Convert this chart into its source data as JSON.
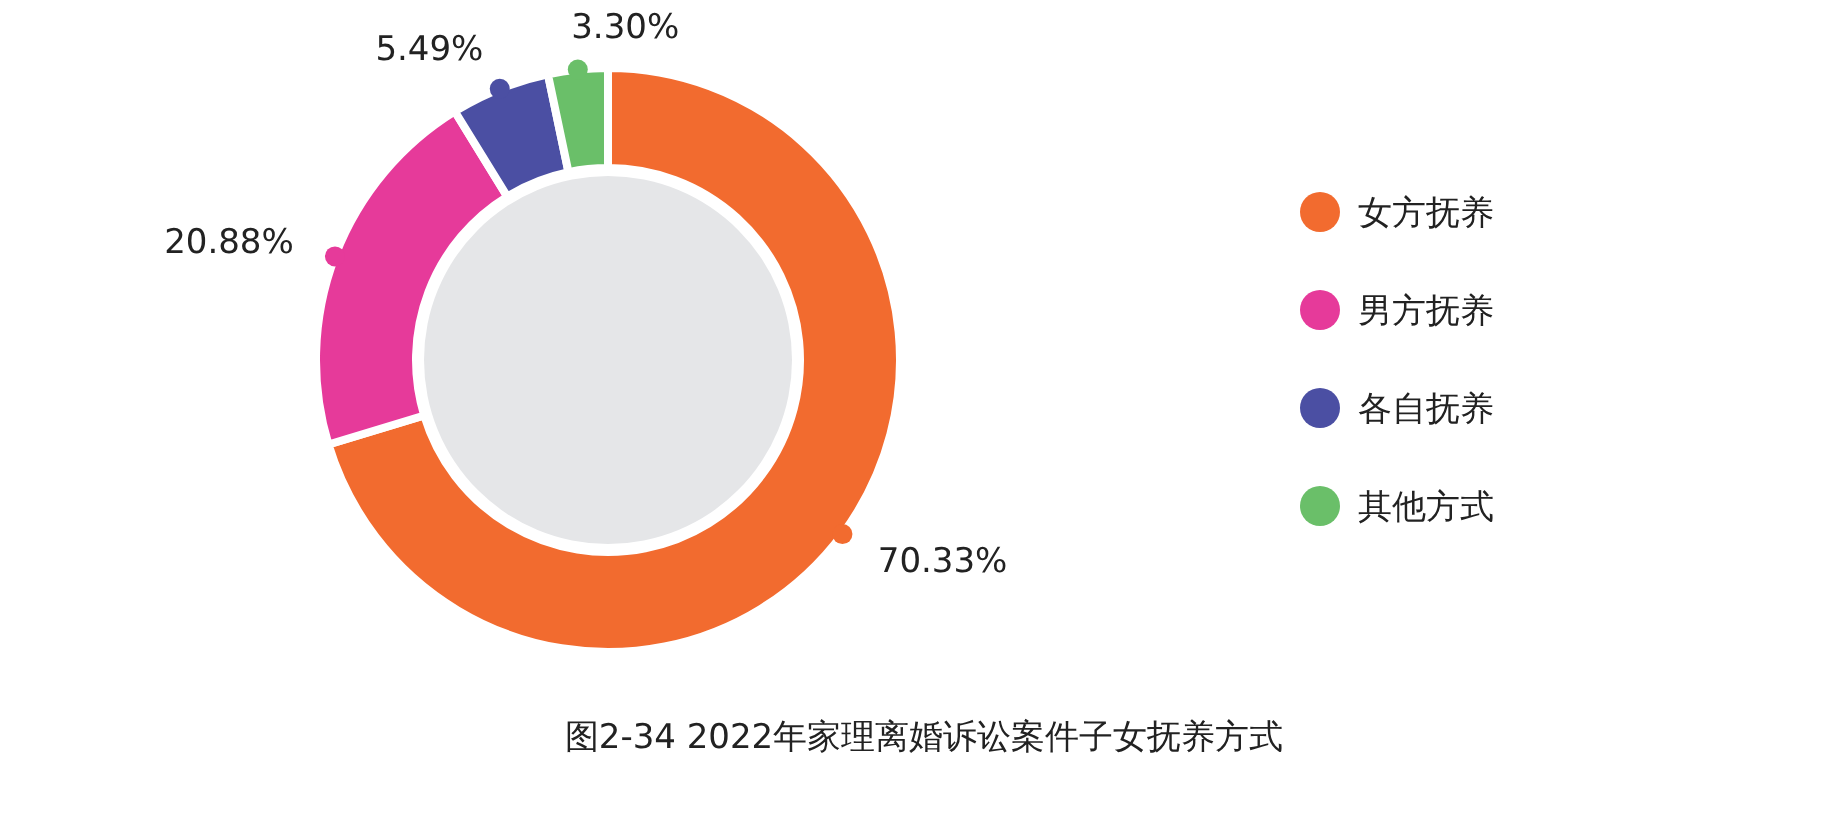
{
  "chart_data": {
    "type": "donut",
    "title": "图2-34  2022年家理离婚诉讼案件子女抚养方式",
    "categories": [
      "女方抚养",
      "男方抚养",
      "各自抚养",
      "其他方式"
    ],
    "values": [
      70.33,
      20.88,
      5.49,
      3.3
    ],
    "colors": [
      "#f26b2f",
      "#e63a9a",
      "#4b4fa3",
      "#6abf69"
    ],
    "value_labels": [
      "70.33%",
      "20.88%",
      "5.49%",
      "3.30%"
    ],
    "legend": "right"
  }
}
